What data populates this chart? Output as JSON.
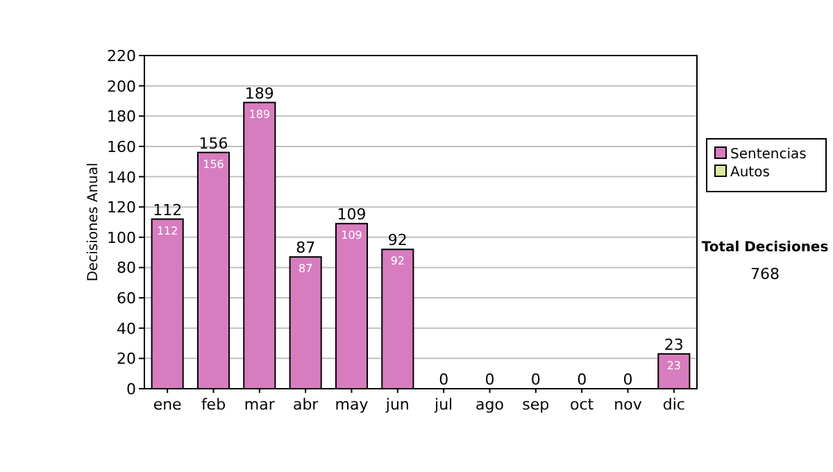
{
  "chart_data": {
    "type": "bar",
    "stacked": true,
    "ylabel": "Decisiones Anual",
    "categories": [
      "ene",
      "feb",
      "mar",
      "abr",
      "may",
      "jun",
      "jul",
      "ago",
      "sep",
      "oct",
      "nov",
      "dic"
    ],
    "series": [
      {
        "name": "Sentencias",
        "color": "#d77dbf",
        "values": [
          112,
          156,
          189,
          87,
          109,
          92,
          0,
          0,
          0,
          0,
          0,
          23
        ],
        "value_labels": [
          "112",
          "156",
          "189",
          "87",
          "109",
          "92",
          null,
          null,
          null,
          null,
          null,
          "23"
        ]
      },
      {
        "name": "Autos",
        "color": "#d8e8a0",
        "values": [
          0,
          0,
          0,
          0,
          0,
          0,
          0,
          0,
          0,
          0,
          0,
          0
        ]
      }
    ],
    "totals": [
      "112",
      "156",
      "189",
      "87",
      "109",
      "92",
      "0",
      "0",
      "0",
      "0",
      "0",
      "23"
    ],
    "ylim": [
      0,
      220
    ],
    "yticks": [
      0,
      20,
      40,
      60,
      80,
      100,
      120,
      140,
      160,
      180,
      200,
      220
    ],
    "grid": "y",
    "legend": "right",
    "annotations": [
      "Total Decisiones",
      "768"
    ]
  }
}
